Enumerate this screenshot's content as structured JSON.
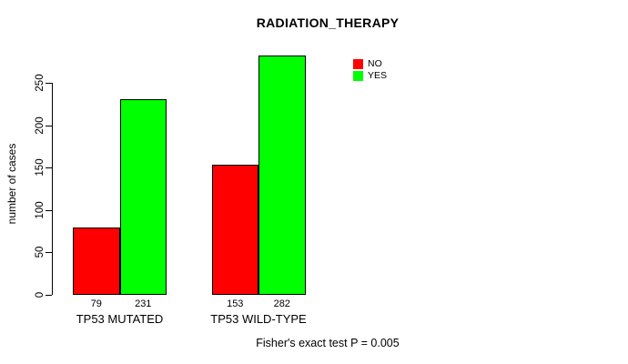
{
  "title": "RADIATION_THERAPY",
  "annotation": "Fisher's exact test P = 0.005",
  "chart_data": {
    "type": "bar",
    "title": "RADIATION_THERAPY",
    "categories": [
      "TP53 MUTATED",
      "TP53 WILD-TYPE"
    ],
    "series": [
      {
        "name": "NO",
        "color": "#ff0000",
        "values": [
          79,
          153
        ]
      },
      {
        "name": "YES",
        "color": "#00ff00",
        "values": [
          231,
          282
        ]
      }
    ],
    "bar_value_labels": [
      [
        79,
        231
      ],
      [
        153,
        282
      ]
    ],
    "xlabel": "",
    "ylabel": "number of cases",
    "yticks": [
      0,
      50,
      100,
      150,
      200,
      250
    ],
    "ylim": [
      0,
      290
    ],
    "grid": false,
    "legend_position": "top-right",
    "annotation": "Fisher's exact test P = 0.005"
  }
}
